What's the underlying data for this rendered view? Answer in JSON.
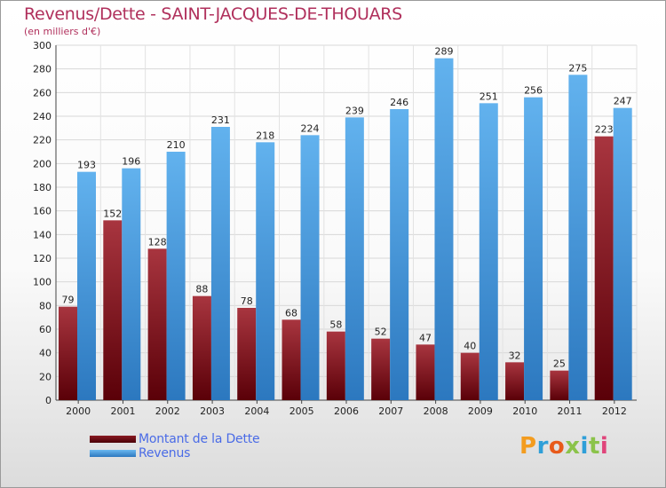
{
  "header": {
    "title": "Revenus/Dette - SAINT-JACQUES-DE-THOUARS",
    "subtitle": "(en milliers d'€)"
  },
  "legend": {
    "items": [
      {
        "label": "Montant de la Dette",
        "color": "#6b0d14"
      },
      {
        "label": "Revenus",
        "color": "#3d8fd6"
      }
    ]
  },
  "logo": {
    "text": "Proxiti"
  },
  "colors": {
    "dette_top": "#a8353f",
    "dette_bottom": "#5a0008",
    "revenus_top": "#62b2ee",
    "revenus_bottom": "#2c78bf",
    "title": "#b0305c",
    "legend_text": "#4a6be6"
  },
  "chart_data": {
    "type": "bar",
    "title": "Revenus/Dette - SAINT-JACQUES-DE-THOUARS",
    "subtitle": "(en milliers d'€)",
    "categories": [
      "2000",
      "2001",
      "2002",
      "2003",
      "2004",
      "2005",
      "2006",
      "2007",
      "2008",
      "2009",
      "2010",
      "2011",
      "2012"
    ],
    "series": [
      {
        "name": "Montant de la Dette",
        "values": [
          79,
          152,
          128,
          88,
          78,
          68,
          58,
          52,
          47,
          40,
          32,
          25,
          223
        ]
      },
      {
        "name": "Revenus",
        "values": [
          193,
          196,
          210,
          231,
          218,
          224,
          239,
          246,
          289,
          251,
          256,
          275,
          247
        ]
      }
    ],
    "ylim": [
      0,
      300
    ],
    "yticks": [
      0,
      20,
      40,
      60,
      80,
      100,
      120,
      140,
      160,
      180,
      200,
      220,
      240,
      260,
      280,
      300
    ],
    "grid": true,
    "legend_position": "bottom-left"
  }
}
